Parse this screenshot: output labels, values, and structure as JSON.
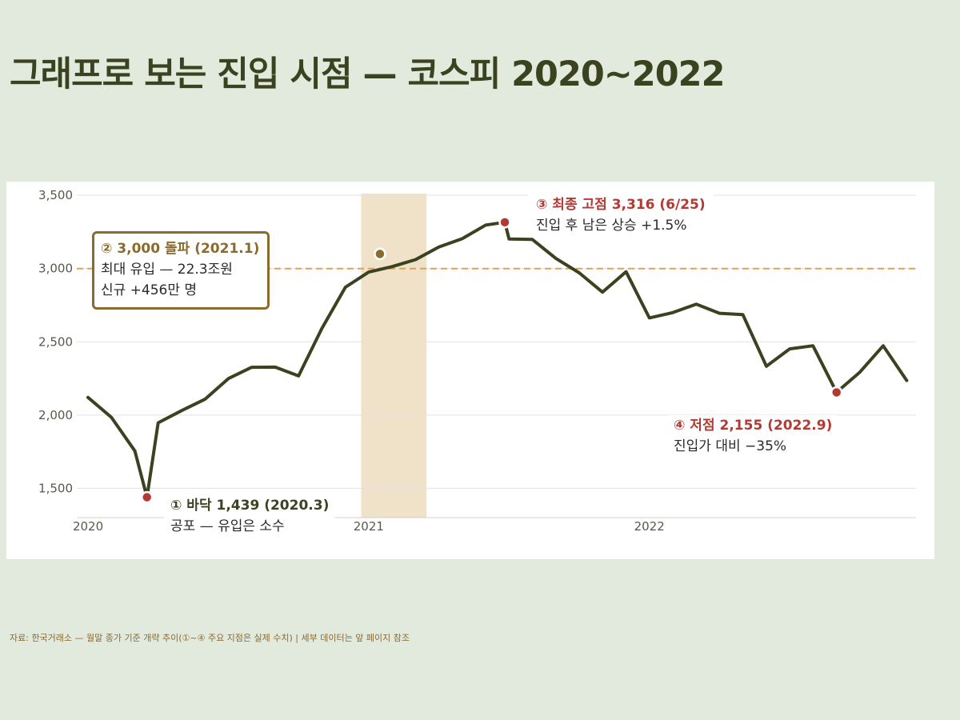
{
  "title": "그래프로 보는 진입 시점 — 코스피 2020~2022",
  "source_note": "자료: 한국거래소 — 월말 종가 기준 개략 추이(①~④ 주요 지점은 실제 수치) | 세부 데이터는 앞 페이지 참조",
  "colors": {
    "background": "#e1eadd",
    "line": "#3a4220",
    "highlight_band": "#f0e2c8",
    "reference_line": "#dca355",
    "marker_red": "#b13a33",
    "marker_brown": "#8b6a2e"
  },
  "annotations": {
    "p1": {
      "head": "① 바닥 1,439 (2020.3)",
      "sub1": "공포 — 유입은 소수"
    },
    "p2": {
      "head": "② 3,000 돌파 (2021.1)",
      "sub1": "최대 유입 — 22.3조원",
      "sub2": "신규 +456만 명"
    },
    "p3": {
      "head": "③ 최종 고점 3,316 (6/25)",
      "sub1": "진입 후 남은 상승 +1.5%"
    },
    "p4": {
      "head": "④ 저점 2,155 (2022.9)",
      "sub1": "진입가 대비 −35%"
    }
  },
  "chart_data": {
    "type": "line",
    "ylim": [
      1300,
      3550
    ],
    "y_ticks": [
      {
        "value": 1500,
        "label": "1,500"
      },
      {
        "value": 2000,
        "label": "2,000"
      },
      {
        "value": 2500,
        "label": "2,500"
      },
      {
        "value": 3000,
        "label": "3,000"
      },
      {
        "value": 3500,
        "label": "3,500"
      }
    ],
    "x_ticks": [
      {
        "value": 2020.0,
        "label": "2020"
      },
      {
        "value": 2021.0,
        "label": "2021"
      },
      {
        "value": 2022.0,
        "label": "2022"
      }
    ],
    "xlim": [
      2019.96,
      2022.95
    ],
    "grid": true,
    "reference_line": {
      "y": 3000,
      "style": "dashed"
    },
    "highlight_band": {
      "x_start": 2020.973,
      "x_end": 2021.206
    },
    "series": [
      {
        "points": [
          {
            "x": 2020.0,
            "y": 2120
          },
          {
            "x": 2020.083,
            "y": 1985
          },
          {
            "x": 2020.167,
            "y": 1755
          },
          {
            "x": 2020.21,
            "y": 1439
          },
          {
            "x": 2020.25,
            "y": 1947
          },
          {
            "x": 2020.333,
            "y": 2030
          },
          {
            "x": 2020.417,
            "y": 2108
          },
          {
            "x": 2020.5,
            "y": 2249
          },
          {
            "x": 2020.583,
            "y": 2326
          },
          {
            "x": 2020.667,
            "y": 2327
          },
          {
            "x": 2020.75,
            "y": 2267
          },
          {
            "x": 2020.833,
            "y": 2591
          },
          {
            "x": 2020.917,
            "y": 2873
          },
          {
            "x": 2021.0,
            "y": 2976
          },
          {
            "x": 2021.083,
            "y": 3013
          },
          {
            "x": 2021.167,
            "y": 3061
          },
          {
            "x": 2021.25,
            "y": 3147
          },
          {
            "x": 2021.333,
            "y": 3204
          },
          {
            "x": 2021.417,
            "y": 3297
          },
          {
            "x": 2021.485,
            "y": 3316
          },
          {
            "x": 2021.5,
            "y": 3202
          },
          {
            "x": 2021.583,
            "y": 3199
          },
          {
            "x": 2021.667,
            "y": 3069
          },
          {
            "x": 2021.75,
            "y": 2971
          },
          {
            "x": 2021.833,
            "y": 2839
          },
          {
            "x": 2021.917,
            "y": 2978
          },
          {
            "x": 2022.0,
            "y": 2663
          },
          {
            "x": 2022.083,
            "y": 2699
          },
          {
            "x": 2022.167,
            "y": 2757
          },
          {
            "x": 2022.25,
            "y": 2695
          },
          {
            "x": 2022.333,
            "y": 2686
          },
          {
            "x": 2022.417,
            "y": 2333
          },
          {
            "x": 2022.5,
            "y": 2452
          },
          {
            "x": 2022.583,
            "y": 2473
          },
          {
            "x": 2022.667,
            "y": 2155
          },
          {
            "x": 2022.75,
            "y": 2293
          },
          {
            "x": 2022.833,
            "y": 2473
          },
          {
            "x": 2022.917,
            "y": 2236
          }
        ]
      }
    ],
    "key_points": [
      {
        "id": "p1",
        "x": 2020.21,
        "y": 1439,
        "color": "#b13a33"
      },
      {
        "id": "p2",
        "x": 2021.04,
        "y": 3100,
        "color": "#8b6a2e"
      },
      {
        "id": "p3",
        "x": 2021.485,
        "y": 3316,
        "color": "#b13a33"
      },
      {
        "id": "p4",
        "x": 2022.667,
        "y": 2155,
        "color": "#b13a33"
      }
    ]
  }
}
